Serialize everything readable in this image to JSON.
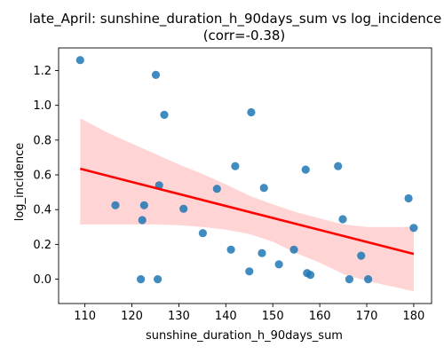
{
  "chart_data": {
    "type": "scatter",
    "title": "late_April: sunshine_duration_h_90days_sum vs log_incidence",
    "subtitle": "(corr=-0.38)",
    "xlabel": "sunshine_duration_h_90days_sum",
    "ylabel": "log_incidence",
    "xlim": [
      104.4,
      183.8
    ],
    "ylim": [
      -0.14,
      1.33
    ],
    "xticks": [
      110,
      120,
      130,
      140,
      150,
      160,
      170,
      180
    ],
    "yticks": [
      0.0,
      0.2,
      0.4,
      0.6,
      0.8,
      1.0,
      1.2
    ],
    "ytick_labels": [
      "0.0",
      "0.2",
      "0.4",
      "0.6",
      "0.8",
      "1.0",
      "1.2"
    ],
    "grid": false,
    "points": [
      {
        "x": 109.0,
        "y": 1.26
      },
      {
        "x": 116.5,
        "y": 0.425
      },
      {
        "x": 121.9,
        "y": 0.0
      },
      {
        "x": 122.2,
        "y": 0.34
      },
      {
        "x": 122.6,
        "y": 0.425
      },
      {
        "x": 125.1,
        "y": 1.175
      },
      {
        "x": 125.5,
        "y": 0.0
      },
      {
        "x": 125.8,
        "y": 0.54
      },
      {
        "x": 126.9,
        "y": 0.945
      },
      {
        "x": 131.0,
        "y": 0.405
      },
      {
        "x": 135.1,
        "y": 0.265
      },
      {
        "x": 138.1,
        "y": 0.52
      },
      {
        "x": 141.1,
        "y": 0.17
      },
      {
        "x": 142.0,
        "y": 0.65
      },
      {
        "x": 145.0,
        "y": 0.045
      },
      {
        "x": 145.4,
        "y": 0.96
      },
      {
        "x": 147.7,
        "y": 0.15
      },
      {
        "x": 148.1,
        "y": 0.525
      },
      {
        "x": 151.3,
        "y": 0.085
      },
      {
        "x": 154.5,
        "y": 0.17
      },
      {
        "x": 157.0,
        "y": 0.63
      },
      {
        "x": 157.3,
        "y": 0.035
      },
      {
        "x": 158.0,
        "y": 0.025
      },
      {
        "x": 163.9,
        "y": 0.65
      },
      {
        "x": 164.9,
        "y": 0.345
      },
      {
        "x": 166.3,
        "y": 0.0
      },
      {
        "x": 168.8,
        "y": 0.135
      },
      {
        "x": 170.3,
        "y": 0.0
      },
      {
        "x": 178.9,
        "y": 0.465
      },
      {
        "x": 180.0,
        "y": 0.295
      }
    ],
    "regression": {
      "x": [
        109.0,
        180.0
      ],
      "y": [
        0.635,
        0.145
      ],
      "color": "#ff0000"
    },
    "confidence_band": {
      "x": [
        109,
        115,
        120,
        125,
        130,
        135,
        140,
        145,
        150,
        155,
        160,
        165,
        170,
        175,
        180
      ],
      "upper": [
        0.925,
        0.84,
        0.78,
        0.72,
        0.66,
        0.605,
        0.545,
        0.48,
        0.43,
        0.385,
        0.35,
        0.315,
        0.3,
        0.3,
        0.3
      ],
      "lower": [
        0.315,
        0.315,
        0.315,
        0.315,
        0.31,
        0.3,
        0.285,
        0.26,
        0.215,
        0.15,
        0.095,
        0.03,
        -0.01,
        -0.04,
        -0.07
      ],
      "color": "#ffb0b0"
    },
    "point_color": "#1f77b4",
    "line_color": "#ff0000"
  }
}
